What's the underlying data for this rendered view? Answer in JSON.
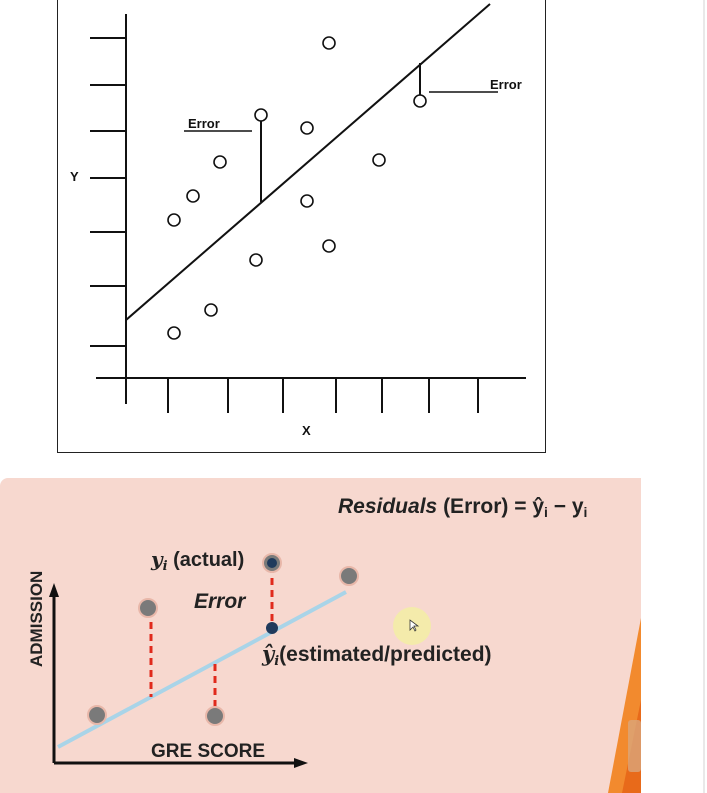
{
  "top_diagram": {
    "y_axis_label": "Y",
    "x_axis_label": "X",
    "error_label_left": "Error",
    "error_label_right": "Error"
  },
  "bottom_diagram": {
    "formula_prefix": "Residuals",
    "formula_paren": "(Error)",
    "formula_rhs": "= ŷ",
    "formula_sub_i": "i",
    "formula_minus": " − y",
    "formula_sub_i2": "i",
    "actual_label_y": "y",
    "actual_label_sub": "i",
    "actual_label_text": " (actual)",
    "error_label": "Error",
    "predicted_label_y": "ŷ",
    "predicted_label_sub": "i",
    "predicted_label_text": "(estimated/predicted)",
    "x_axis_label": "GRE SCORE",
    "y_axis_label": "ADMISSION",
    "colors": {
      "background": "#f7d8cf",
      "regression_line": "#a9d4e8",
      "residual_dash": "#e02a1c",
      "point_fill": "#7a7a7a",
      "predicted_point": "#1f3a5c",
      "cursor_highlight": "#f3efa4"
    }
  }
}
